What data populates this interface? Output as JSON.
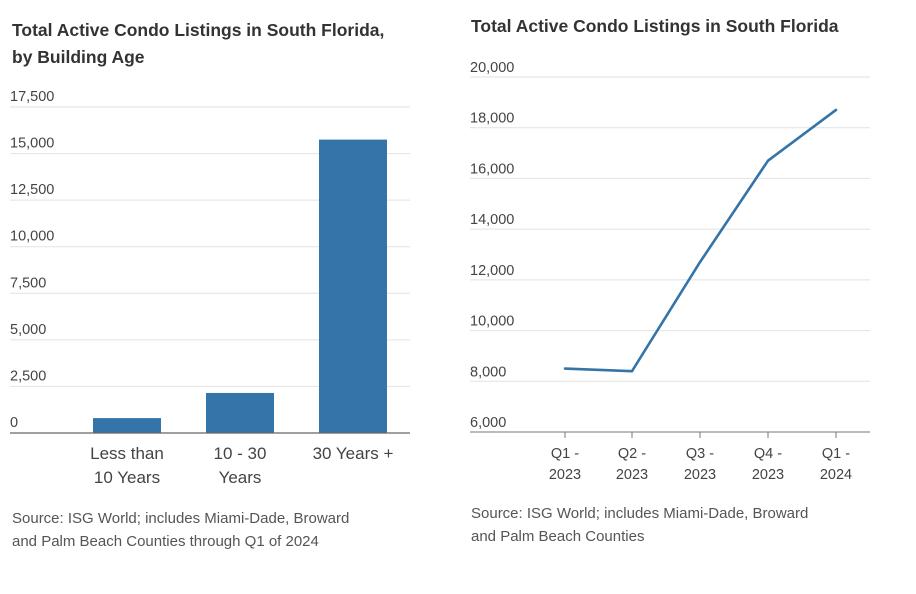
{
  "chart_data": [
    {
      "type": "bar",
      "title_lines": [
        "Total Active Condo Listings in South Florida,",
        "by Building Age"
      ],
      "categories": [
        [
          "Less than",
          "10 Years"
        ],
        [
          "10 - 30",
          "Years"
        ],
        [
          "30 Years +"
        ]
      ],
      "values": [
        800,
        2150,
        15750
      ],
      "ylim": [
        0,
        17500
      ],
      "yticks": [
        0,
        2500,
        5000,
        7500,
        10000,
        12500,
        15000,
        17500
      ],
      "ytick_labels": [
        "0",
        "2,500",
        "5,000",
        "7,500",
        "10,000",
        "12,500",
        "15,000",
        "17,500"
      ],
      "grid": true,
      "bar_color": "#3474a8",
      "source_lines": [
        "Source: ISG World; includes Miami-Dade, Broward",
        "and Palm Beach Counties through Q1 of 2024"
      ]
    },
    {
      "type": "line",
      "title": "Total Active Condo Listings in South Florida",
      "categories": [
        [
          "Q1 -",
          "2023"
        ],
        [
          "Q2 -",
          "2023"
        ],
        [
          "Q3 -",
          "2023"
        ],
        [
          "Q4 -",
          "2023"
        ],
        [
          "Q1 -",
          "2024"
        ]
      ],
      "values": [
        8500,
        8400,
        12700,
        16700,
        18700
      ],
      "ylim": [
        6000,
        20000
      ],
      "yticks": [
        6000,
        8000,
        10000,
        12000,
        14000,
        16000,
        18000,
        20000
      ],
      "ytick_labels": [
        "6,000",
        "8,000",
        "10,000",
        "12,000",
        "14,000",
        "16,000",
        "18,000",
        "20,000"
      ],
      "grid": true,
      "line_color": "#3474a8",
      "source_lines": [
        "Source: ISG World; includes Miami-Dade, Broward",
        "and Palm Beach Counties"
      ]
    }
  ]
}
